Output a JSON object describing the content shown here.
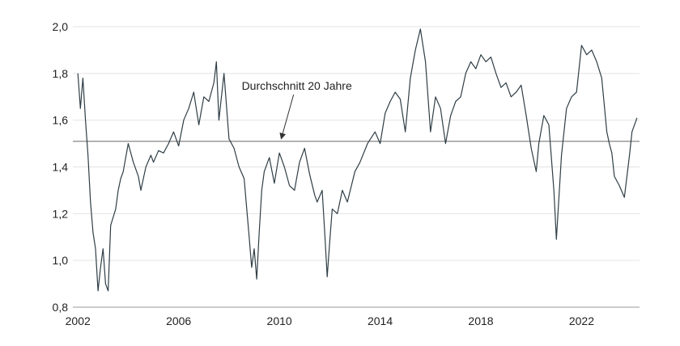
{
  "chart_data": {
    "type": "line",
    "title": "",
    "xlabel": "",
    "ylabel": "",
    "xlim": [
      2001.8,
      2024.3
    ],
    "ylim": [
      0.8,
      2.0
    ],
    "x_ticks": [
      {
        "value": 2002,
        "label": "2002"
      },
      {
        "value": 2006,
        "label": "2006"
      },
      {
        "value": 2010,
        "label": "2010"
      },
      {
        "value": 2014,
        "label": "2014"
      },
      {
        "value": 2018,
        "label": "2018"
      },
      {
        "value": 2022,
        "label": "2022"
      }
    ],
    "y_ticks": [
      {
        "value": 0.8,
        "label": "0,8"
      },
      {
        "value": 1.0,
        "label": "1,0"
      },
      {
        "value": 1.2,
        "label": "1,2"
      },
      {
        "value": 1.4,
        "label": "1,4"
      },
      {
        "value": 1.6,
        "label": "1,6"
      },
      {
        "value": 1.8,
        "label": "1,8"
      },
      {
        "value": 2.0,
        "label": "2,0"
      }
    ],
    "grid": "horizontal",
    "colors": {
      "series": "#2f3e46",
      "reference": "#9a9a9a",
      "grid": "#e3e3e3"
    },
    "reference_line": {
      "y": 1.51,
      "label": "Durchschnitt 20 Jahre"
    },
    "annotation": {
      "text": "Durchschnitt 20 Jahre",
      "x": 2010.05,
      "y": 1.51
    },
    "series": [
      {
        "name": "",
        "x": [
          2002.0,
          2002.1,
          2002.2,
          2002.3,
          2002.4,
          2002.5,
          2002.6,
          2002.7,
          2002.8,
          2002.9,
          2003.0,
          2003.1,
          2003.2,
          2003.3,
          2003.5,
          2003.6,
          2003.7,
          2003.8,
          2004.0,
          2004.2,
          2004.4,
          2004.5,
          2004.7,
          2004.9,
          2005.0,
          2005.2,
          2005.4,
          2005.6,
          2005.8,
          2006.0,
          2006.2,
          2006.4,
          2006.6,
          2006.8,
          2007.0,
          2007.2,
          2007.4,
          2007.5,
          2007.6,
          2007.8,
          2008.0,
          2008.2,
          2008.4,
          2008.6,
          2008.8,
          2008.9,
          2009.0,
          2009.1,
          2009.2,
          2009.3,
          2009.4,
          2009.6,
          2009.8,
          2010.0,
          2010.2,
          2010.4,
          2010.6,
          2010.8,
          2011.0,
          2011.2,
          2011.4,
          2011.5,
          2011.7,
          2011.8,
          2011.9,
          2012.0,
          2012.1,
          2012.3,
          2012.5,
          2012.7,
          2013.0,
          2013.2,
          2013.5,
          2013.8,
          2014.0,
          2014.2,
          2014.4,
          2014.6,
          2014.8,
          2015.0,
          2015.2,
          2015.4,
          2015.6,
          2015.8,
          2016.0,
          2016.2,
          2016.4,
          2016.6,
          2016.8,
          2017.0,
          2017.2,
          2017.4,
          2017.6,
          2017.8,
          2018.0,
          2018.2,
          2018.4,
          2018.6,
          2018.8,
          2019.0,
          2019.2,
          2019.4,
          2019.6,
          2019.8,
          2020.0,
          2020.2,
          2020.3,
          2020.5,
          2020.7,
          2020.9,
          2021.0,
          2021.2,
          2021.4,
          2021.6,
          2021.8,
          2022.0,
          2022.2,
          2022.4,
          2022.6,
          2022.8,
          2023.0,
          2023.1,
          2023.2,
          2023.3,
          2023.5,
          2023.7,
          2023.9,
          2024.0,
          2024.1,
          2024.2
        ],
        "y": [
          1.8,
          1.65,
          1.78,
          1.6,
          1.45,
          1.25,
          1.12,
          1.05,
          0.87,
          0.97,
          1.05,
          0.9,
          0.87,
          1.15,
          1.22,
          1.3,
          1.35,
          1.38,
          1.5,
          1.42,
          1.36,
          1.3,
          1.4,
          1.45,
          1.42,
          1.47,
          1.46,
          1.5,
          1.55,
          1.49,
          1.6,
          1.65,
          1.72,
          1.58,
          1.7,
          1.68,
          1.76,
          1.85,
          1.6,
          1.8,
          1.52,
          1.48,
          1.4,
          1.35,
          1.1,
          0.97,
          1.05,
          0.92,
          1.12,
          1.3,
          1.38,
          1.44,
          1.33,
          1.46,
          1.4,
          1.32,
          1.3,
          1.42,
          1.48,
          1.37,
          1.28,
          1.25,
          1.3,
          1.12,
          0.93,
          1.08,
          1.22,
          1.2,
          1.3,
          1.25,
          1.38,
          1.42,
          1.5,
          1.55,
          1.5,
          1.63,
          1.68,
          1.72,
          1.69,
          1.55,
          1.78,
          1.9,
          1.99,
          1.85,
          1.55,
          1.7,
          1.65,
          1.5,
          1.62,
          1.68,
          1.7,
          1.8,
          1.85,
          1.82,
          1.88,
          1.85,
          1.87,
          1.8,
          1.74,
          1.76,
          1.7,
          1.72,
          1.75,
          1.62,
          1.48,
          1.38,
          1.5,
          1.62,
          1.58,
          1.3,
          1.09,
          1.45,
          1.65,
          1.7,
          1.72,
          1.92,
          1.88,
          1.9,
          1.85,
          1.78,
          1.55,
          1.5,
          1.46,
          1.36,
          1.32,
          1.27,
          1.45,
          1.55,
          1.58,
          1.61
        ]
      }
    ]
  }
}
